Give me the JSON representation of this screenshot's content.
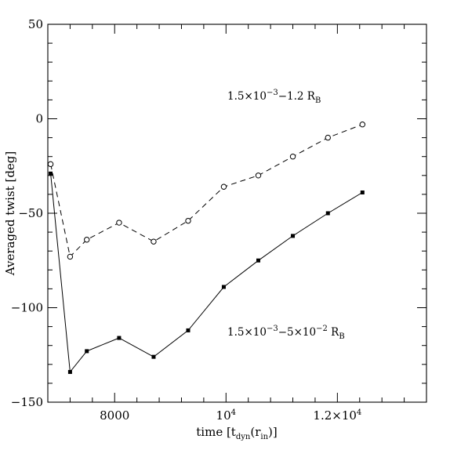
{
  "chart_data": {
    "type": "line",
    "xlabel": {
      "main": "time [t",
      "sub1": "dyn",
      "mid": "(r",
      "sub2": "in",
      "end": ")]"
    },
    "ylabel": "Averaged twist [deg]",
    "xlim": [
      6800,
      13600
    ],
    "ylim": [
      -150,
      50
    ],
    "x_ticks": [
      {
        "value": 8000,
        "base": "8000",
        "sup": ""
      },
      {
        "value": 10000,
        "base": "10",
        "sup": "4"
      },
      {
        "value": 12000,
        "base": "1.2×10",
        "sup": "4"
      }
    ],
    "y_ticks": [
      50,
      0,
      -50,
      -100,
      -150
    ],
    "series": [
      {
        "name": "1.5×10⁻³−1.2 R_B",
        "style": "dashed",
        "marker": "open-circle",
        "x": [
          6850,
          7200,
          7500,
          8080,
          8700,
          9320,
          9960,
          10580,
          11200,
          11830,
          12450
        ],
        "y": [
          -24,
          -73,
          -64,
          -55,
          -65,
          -54,
          -36,
          -30,
          -20,
          -10,
          -3
        ]
      },
      {
        "name": "1.5×10⁻³−5×10⁻² R_B",
        "style": "solid",
        "marker": "filled-square",
        "x": [
          6850,
          7200,
          7500,
          8080,
          8700,
          9320,
          9960,
          10580,
          11200,
          11830,
          12450
        ],
        "y": [
          -29,
          -134,
          -123,
          -116,
          -126,
          -112,
          -89,
          -75,
          -62,
          -50,
          -39
        ]
      }
    ],
    "annotations": [
      {
        "id": "dashed",
        "parts": [
          "1.5×10",
          "−3",
          "−1.2 R",
          "B",
          ""
        ]
      },
      {
        "id": "solid",
        "parts": [
          "1.5×10",
          "−3",
          "−5×10",
          "−2",
          " R",
          "B"
        ]
      }
    ]
  }
}
